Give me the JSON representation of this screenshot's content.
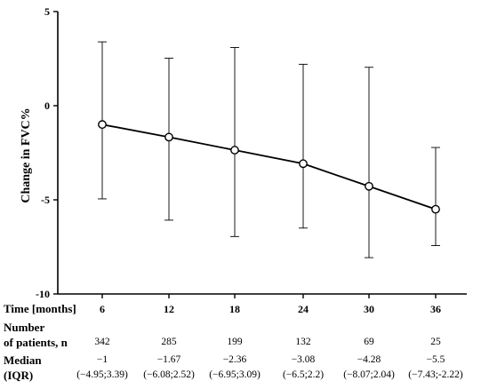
{
  "chart_data": {
    "type": "line",
    "ylabel": "Change in FVC%",
    "ylim": [
      -10,
      5
    ],
    "yticks": [
      5,
      0,
      -5,
      -10
    ],
    "x": [
      6,
      12,
      18,
      24,
      30,
      36
    ],
    "xticks": [
      "6",
      "12",
      "18",
      "24",
      "30",
      "36"
    ],
    "series": [
      {
        "values": [
          -1,
          -1.67,
          -2.36,
          -3.08,
          -4.28,
          -5.5
        ],
        "err_low": [
          -4.95,
          -6.08,
          -6.95,
          -6.5,
          -8.07,
          -7.43
        ],
        "err_high": [
          3.39,
          2.52,
          3.09,
          2.2,
          2.04,
          -2.22
        ]
      }
    ],
    "marker": "open-circle",
    "grid": false,
    "legend": "none"
  },
  "table": {
    "x_row_label": "Time [months]",
    "patients_label_1": "Number",
    "patients_label_2": "of patients, n",
    "patients": [
      "342",
      "285",
      "199",
      "132",
      "69",
      "25"
    ],
    "median_label_1": "Median",
    "median_label_2": "(IQR)",
    "medians": [
      "−1",
      "−1.67",
      "−2.36",
      "−3.08",
      "−4.28",
      "−5.5"
    ],
    "iqrs": [
      "(−4.95;3.39)",
      "(−6.08;2.52)",
      "(−6.95;3.09)",
      "(−6.5;2.2)",
      "(−8.07;2.04)",
      "(−7.43;-2.22)"
    ]
  },
  "colors": {
    "line": "#000000",
    "text": "#000000"
  }
}
